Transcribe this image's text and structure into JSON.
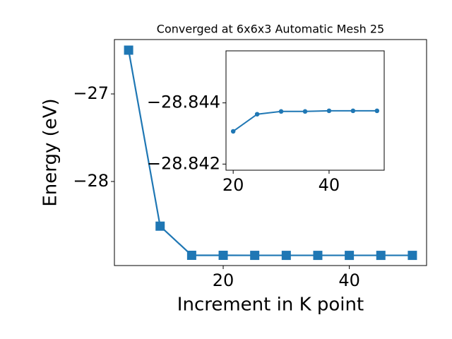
{
  "chart_data": [
    {
      "type": "line",
      "title": "Converged at 6x6x3 Automatic Mesh 25",
      "x_label": "Increment in K point",
      "y_label": "Energy (eV)",
      "x": [
        5,
        10,
        15,
        20,
        25,
        30,
        35,
        40,
        45,
        50
      ],
      "series": [
        {
          "color": "#1f77b4",
          "marker": "square",
          "values": [
            -26.5,
            -28.51,
            -28.843,
            -28.84307,
            -28.84363,
            -28.84372,
            -28.84372,
            -28.84374,
            -28.84374,
            -28.84374
          ]
        }
      ],
      "xlim": [
        2.75,
        52.25
      ],
      "ylim": [
        -28.96,
        -26.379
      ],
      "xticks": [
        20,
        40
      ],
      "yticks": [
        {
          "value": -28,
          "label": "−28"
        },
        {
          "value": -27,
          "label": "−27"
        }
      ]
    },
    {
      "type": "line",
      "x": [
        20,
        25,
        30,
        35,
        40,
        45,
        50
      ],
      "series": [
        {
          "color": "#1f77b4",
          "marker": "circle",
          "values": [
            -28.84307,
            -28.84363,
            -28.84372,
            -28.84372,
            -28.84374,
            -28.84374,
            -28.84374
          ]
        }
      ],
      "xlim": [
        18.5,
        51.5
      ],
      "ylim": [
        -28.8418,
        -28.8457
      ],
      "xticks": [
        20,
        40
      ],
      "yticks": [
        {
          "value": -28.842,
          "label": "−28.842"
        },
        {
          "value": -28.844,
          "label": "−28.844"
        }
      ]
    }
  ]
}
